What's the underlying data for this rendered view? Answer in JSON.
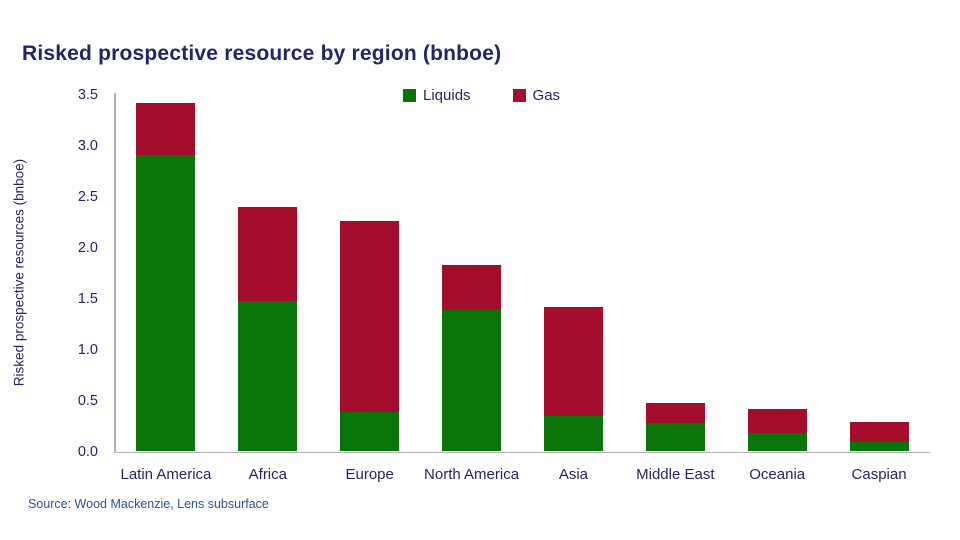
{
  "title": "Risked prospective resource by region (bnboe)",
  "source": "Source: Wood Mackenzie, Lens subsurface",
  "colors": {
    "text_navy": "#24246a",
    "source_blue": "#2d5493",
    "axis_gray": "#b2b2b6",
    "liquids_green": "#097509",
    "gas_red": "#a40d2c"
  },
  "chart_data": {
    "type": "bar",
    "stacked": true,
    "title": "Risked prospective resource by region (bnboe)",
    "xlabel": "",
    "ylabel": "Risked prospective resources (bnboe)",
    "ylim": [
      0,
      3.5
    ],
    "yticks": [
      "0.0",
      "0.5",
      "1.0",
      "1.5",
      "2.0",
      "2.5",
      "3.0",
      "3.5"
    ],
    "grid": false,
    "legend_position": "top-center",
    "categories": [
      "Latin America",
      "Africa",
      "Europe",
      "North America",
      "Asia",
      "Middle East",
      "Oceania",
      "Caspian"
    ],
    "series": [
      {
        "name": "Liquids",
        "color": "#097509",
        "values": [
          2.91,
          1.48,
          0.39,
          1.39,
          0.35,
          0.28,
          0.18,
          0.09
        ]
      },
      {
        "name": "Gas",
        "color": "#a40d2c",
        "values": [
          0.51,
          0.92,
          1.87,
          0.44,
          1.07,
          0.2,
          0.24,
          0.2
        ]
      }
    ]
  }
}
